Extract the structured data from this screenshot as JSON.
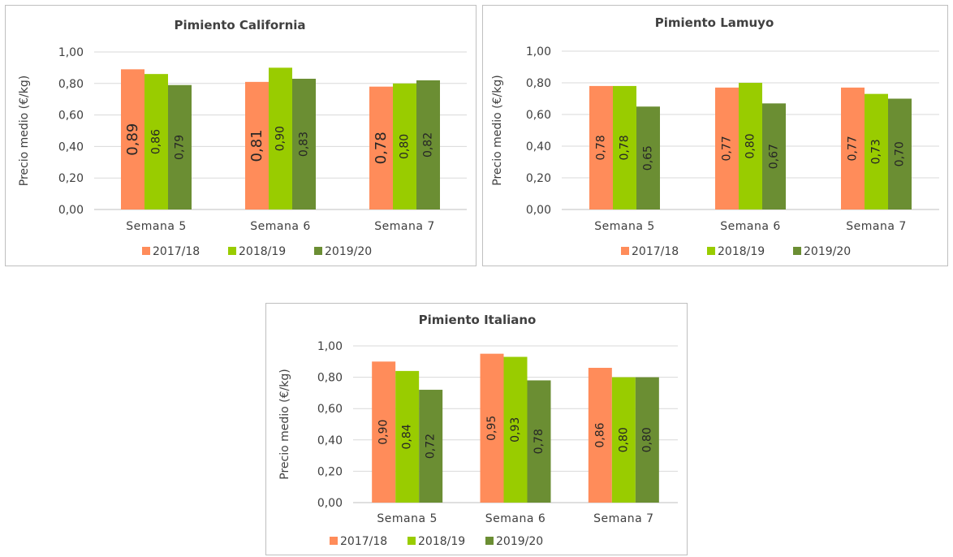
{
  "colors": {
    "2017/18": "#ff8c5a",
    "2018/19": "#99cc00",
    "2019/20": "#6b8e33"
  },
  "chart_data": [
    {
      "type": "bar",
      "title": "Pimiento California",
      "ylabel": "Precio medio  (€/kg)",
      "xlabel": "",
      "categories": [
        "Semana 5",
        "Semana 6",
        "Semana 7"
      ],
      "ylim": [
        0,
        1
      ],
      "yticks": [
        "0,00",
        "0,20",
        "0,40",
        "0,60",
        "0,80",
        "1,00"
      ],
      "legend": "bottom",
      "grid": true,
      "series": [
        {
          "name": "2017/18",
          "values": [
            0.89,
            0.81,
            0.78
          ],
          "labels": [
            "0,89",
            "0,81",
            "0,78"
          ]
        },
        {
          "name": "2018/19",
          "values": [
            0.86,
            0.9,
            0.8
          ],
          "labels": [
            "0,86",
            "0,90",
            "0,80"
          ]
        },
        {
          "name": "2019/20",
          "values": [
            0.79,
            0.83,
            0.82
          ],
          "labels": [
            "0,79",
            "0,83",
            "0,82"
          ]
        }
      ]
    },
    {
      "type": "bar",
      "title": "Pimiento Lamuyo",
      "ylabel": "Precio medio  (€/kg)",
      "xlabel": "",
      "categories": [
        "Semana 5",
        "Semana 6",
        "Semana 7"
      ],
      "ylim": [
        0,
        1
      ],
      "yticks": [
        "0,00",
        "0,20",
        "0,40",
        "0,60",
        "0,80",
        "1,00"
      ],
      "legend": "bottom",
      "grid": true,
      "series": [
        {
          "name": "2017/18",
          "values": [
            0.78,
            0.77,
            0.77
          ],
          "labels": [
            "0,78",
            "0,77",
            "0,77"
          ]
        },
        {
          "name": "2018/19",
          "values": [
            0.78,
            0.8,
            0.73
          ],
          "labels": [
            "0,78",
            "0,80",
            "0,73"
          ]
        },
        {
          "name": "2019/20",
          "values": [
            0.65,
            0.67,
            0.7
          ],
          "labels": [
            "0,65",
            "0,67",
            "0,70"
          ]
        }
      ]
    },
    {
      "type": "bar",
      "title": "Pimiento Italiano",
      "ylabel": "Precio medio  (€/kg)",
      "xlabel": "",
      "categories": [
        "Semana 5",
        "Semana 6",
        "Semana 7"
      ],
      "ylim": [
        0,
        1
      ],
      "yticks": [
        "0,00",
        "0,20",
        "0,40",
        "0,60",
        "0,80",
        "1,00"
      ],
      "legend": "bottom",
      "grid": true,
      "series": [
        {
          "name": "2017/18",
          "values": [
            0.9,
            0.95,
            0.86
          ],
          "labels": [
            "0,90",
            "0,95",
            "0,86"
          ]
        },
        {
          "name": "2018/19",
          "values": [
            0.84,
            0.93,
            0.8
          ],
          "labels": [
            "0,84",
            "0,93",
            "0,80"
          ]
        },
        {
          "name": "2019/20",
          "values": [
            0.72,
            0.78,
            0.8
          ],
          "labels": [
            "0,72",
            "0,78",
            "0,80"
          ]
        }
      ]
    }
  ]
}
